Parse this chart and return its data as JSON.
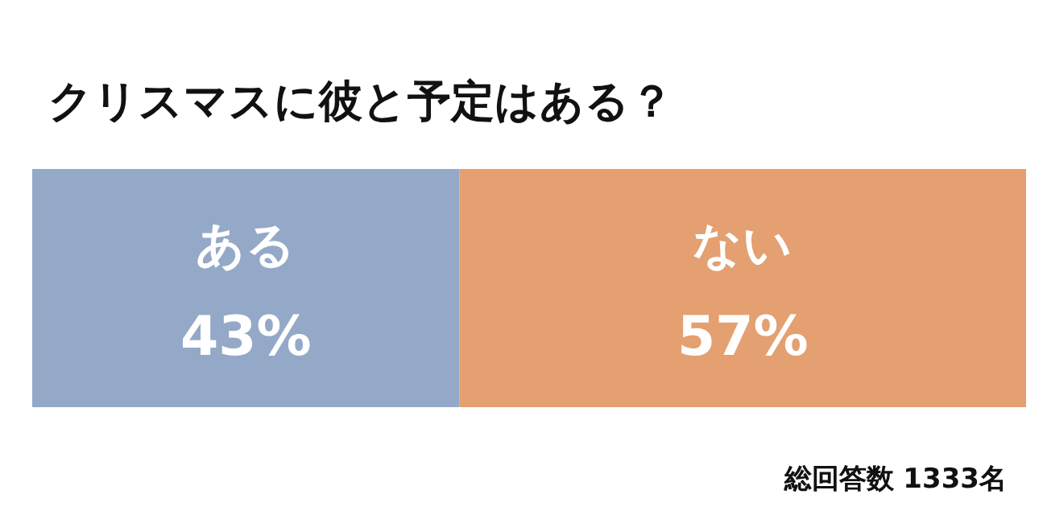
{
  "chart_data": {
    "type": "bar",
    "orientation": "horizontal",
    "stacked": true,
    "title": "クリスマスに彼と予定はある？",
    "categories": [
      null
    ],
    "series": [
      {
        "name": "ある",
        "color": "#94a9c8",
        "values": [
          43
        ],
        "value_labels": [
          "43%"
        ]
      },
      {
        "name": "ない",
        "color": "#e4a070",
        "values": [
          57
        ],
        "value_labels": [
          "57%"
        ]
      }
    ],
    "annotations": [
      "総回答数 1333名"
    ]
  }
}
